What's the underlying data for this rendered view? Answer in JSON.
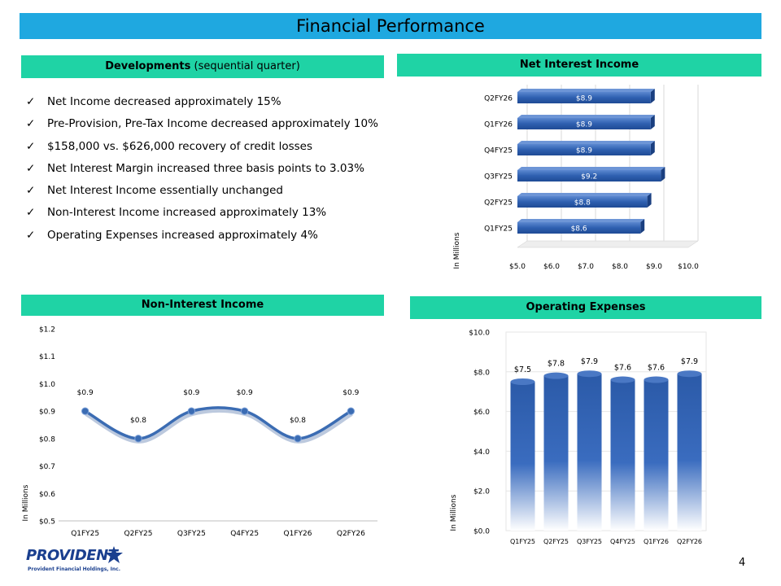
{
  "page": {
    "title": "Financial Performance",
    "page_number": "4",
    "logo_word": "PROVIDENT",
    "logo_subtext": "Provident Financial Holdings, Inc."
  },
  "developments": {
    "heading_bold": "Developments",
    "heading_normal": " (sequential quarter)",
    "items": [
      "Net Income decreased approximately 15%",
      "Pre-Provision, Pre-Tax Income decreased approximately 10%",
      "$158,000 vs. $626,000 recovery of credit losses",
      "Net Interest Margin increased three basis points to 3.03%",
      "Net Interest Income essentially unchanged",
      "Non-Interest Income increased approximately 13%",
      "Operating Expenses increased approximately 4%"
    ]
  },
  "colors": {
    "title_bar": "#1fa8e0",
    "section_head": "#1fd3a5",
    "bar_blue": "#2e5fb0",
    "line_blue": "#3b6cb3"
  },
  "chart_data": [
    {
      "id": "nii",
      "type": "bar",
      "orientation": "horizontal",
      "title": "Net Interest Income",
      "ylabel": "In Millions",
      "categories": [
        "Q1FY25",
        "Q2FY25",
        "Q3FY25",
        "Q4FY25",
        "Q1FY26",
        "Q2FY26"
      ],
      "values": [
        8.6,
        8.8,
        9.2,
        8.9,
        8.9,
        8.9
      ],
      "labels": [
        "$8.6",
        "$8.8",
        "$9.2",
        "$8.9",
        "$8.9",
        "$8.9"
      ],
      "xlim": [
        5.0,
        10.0
      ],
      "ticks": [
        "$5.0",
        "$6.0",
        "$7.0",
        "$8.0",
        "$9.0",
        "$10.0"
      ]
    },
    {
      "id": "nonii",
      "type": "line",
      "title": "Non-Interest Income",
      "ylabel": "In Millions",
      "categories": [
        "Q1FY25",
        "Q2FY25",
        "Q3FY25",
        "Q4FY25",
        "Q1FY26",
        "Q2FY26"
      ],
      "values": [
        0.9,
        0.8,
        0.9,
        0.9,
        0.8,
        0.9
      ],
      "labels": [
        "$0.9",
        "$0.8",
        "$0.9",
        "$0.9",
        "$0.8",
        "$0.9"
      ],
      "ylim": [
        0.5,
        1.2
      ],
      "ticks": [
        "$0.5",
        "$0.6",
        "$0.7",
        "$0.8",
        "$0.9",
        "$1.0",
        "$1.1",
        "$1.2"
      ]
    },
    {
      "id": "opex",
      "type": "bar",
      "orientation": "vertical",
      "title": "Operating Expenses",
      "ylabel": "In Millions",
      "categories": [
        "Q1FY25",
        "Q2FY25",
        "Q3FY25",
        "Q4FY25",
        "Q1FY26",
        "Q2FY26"
      ],
      "values": [
        7.5,
        7.8,
        7.9,
        7.6,
        7.6,
        7.9
      ],
      "labels": [
        "$7.5",
        "$7.8",
        "$7.9",
        "$7.6",
        "$7.6",
        "$7.9"
      ],
      "ylim": [
        0.0,
        10.0
      ],
      "ticks": [
        "$0.0",
        "$2.0",
        "$4.0",
        "$6.0",
        "$8.0",
        "$10.0"
      ]
    }
  ]
}
